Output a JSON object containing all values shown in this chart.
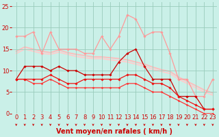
{
  "title": "",
  "xlabel": "Vent moyen/en rafales ( km/h )",
  "background_color": "#caf0e8",
  "grid_color": "#99ccbb",
  "xlim": [
    -0.5,
    23.5
  ],
  "ylim": [
    0,
    26
  ],
  "yticks": [
    0,
    5,
    10,
    15,
    20,
    25
  ],
  "xticks": [
    0,
    1,
    2,
    3,
    4,
    5,
    6,
    7,
    8,
    9,
    10,
    11,
    12,
    13,
    14,
    15,
    16,
    17,
    18,
    19,
    20,
    21,
    22,
    23
  ],
  "series": [
    {
      "x": [
        0,
        1,
        2,
        3,
        4,
        5,
        6,
        7,
        8,
        9,
        10,
        11,
        12,
        13,
        14,
        15,
        16,
        17,
        18,
        19,
        20,
        21,
        22,
        23
      ],
      "y": [
        18,
        18,
        19,
        14,
        19,
        15,
        15,
        15,
        14,
        14,
        18,
        15,
        18,
        23,
        22,
        18,
        19,
        19,
        14,
        8,
        8,
        4,
        4,
        8
      ],
      "color": "#ff9999",
      "lw": 0.9,
      "marker": "D",
      "ms": 1.8,
      "zorder": 2
    },
    {
      "x": [
        0,
        1,
        2,
        3,
        4,
        5,
        6,
        7,
        8,
        9,
        10,
        11,
        12,
        13,
        14,
        15,
        16,
        17,
        18,
        19,
        20,
        21,
        22,
        23
      ],
      "y": [
        14.5,
        15.5,
        15,
        14.5,
        14.2,
        14.8,
        14.2,
        13.8,
        13.5,
        13.2,
        13.2,
        13.0,
        12.8,
        12.5,
        12.0,
        11.5,
        10.8,
        10.2,
        9.8,
        8.5,
        7.5,
        6.5,
        5.5,
        4.8
      ],
      "color": "#ffbbbb",
      "lw": 1.3,
      "marker": null,
      "ms": 0,
      "zorder": 1
    },
    {
      "x": [
        0,
        1,
        2,
        3,
        4,
        5,
        6,
        7,
        8,
        9,
        10,
        11,
        12,
        13,
        14,
        15,
        16,
        17,
        18,
        19,
        20,
        21,
        22,
        23
      ],
      "y": [
        14.0,
        15.0,
        14.5,
        14.0,
        13.8,
        14.3,
        13.8,
        13.3,
        13.0,
        12.8,
        12.8,
        12.5,
        12.3,
        12.0,
        11.5,
        11.0,
        10.3,
        9.8,
        9.3,
        8.0,
        7.0,
        6.0,
        5.0,
        4.3
      ],
      "color": "#ffcccc",
      "lw": 1.3,
      "marker": null,
      "ms": 0,
      "zorder": 1
    },
    {
      "x": [
        0,
        1,
        2,
        3,
        4,
        5,
        6,
        7,
        8,
        9,
        10,
        11,
        12,
        13,
        14,
        15,
        16,
        17,
        18,
        19,
        20,
        21,
        22,
        23
      ],
      "y": [
        8,
        11,
        11,
        11,
        10,
        11,
        10,
        10,
        9,
        9,
        9,
        9,
        12,
        14,
        15,
        11,
        8,
        8,
        8,
        4,
        4,
        4,
        1,
        1
      ],
      "color": "#cc0000",
      "lw": 0.9,
      "marker": "D",
      "ms": 1.8,
      "zorder": 3
    },
    {
      "x": [
        0,
        1,
        2,
        3,
        4,
        5,
        6,
        7,
        8,
        9,
        10,
        11,
        12,
        13,
        14,
        15,
        16,
        17,
        18,
        19,
        20,
        21,
        22,
        23
      ],
      "y": [
        8,
        8,
        8,
        8,
        9,
        8,
        7,
        7,
        8,
        8,
        8,
        8,
        8,
        9,
        9,
        8,
        7,
        7,
        6,
        4,
        3,
        2,
        1,
        1
      ],
      "color": "#ee1111",
      "lw": 0.9,
      "marker": "D",
      "ms": 1.8,
      "zorder": 3
    },
    {
      "x": [
        0,
        1,
        2,
        3,
        4,
        5,
        6,
        7,
        8,
        9,
        10,
        11,
        12,
        13,
        14,
        15,
        16,
        17,
        18,
        19,
        20,
        21,
        22,
        23
      ],
      "y": [
        8,
        8,
        7,
        7,
        8,
        7,
        6,
        6,
        6,
        6,
        6,
        6,
        6,
        7,
        7,
        6,
        5,
        5,
        4,
        3,
        2,
        1,
        0,
        0
      ],
      "color": "#ff3333",
      "lw": 0.9,
      "marker": "D",
      "ms": 1.5,
      "zorder": 2
    }
  ],
  "xlabel_color": "#cc0000",
  "xlabel_fontsize": 7,
  "tick_fontsize": 6,
  "ytick_color": "#cc0000",
  "xtick_color": "#cc0000"
}
